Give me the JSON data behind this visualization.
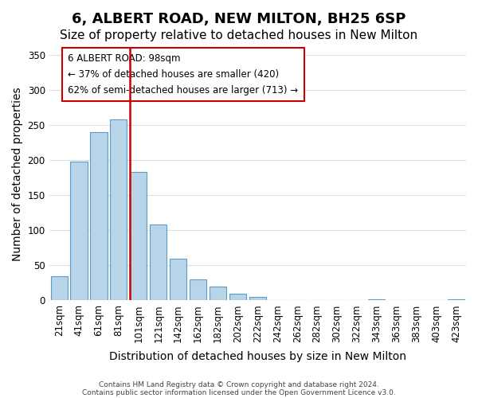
{
  "title": "6, ALBERT ROAD, NEW MILTON, BH25 6SP",
  "subtitle": "Size of property relative to detached houses in New Milton",
  "xlabel": "Distribution of detached houses by size in New Milton",
  "ylabel": "Number of detached properties",
  "bar_labels": [
    "21sqm",
    "41sqm",
    "61sqm",
    "81sqm",
    "101sqm",
    "121sqm",
    "142sqm",
    "162sqm",
    "182sqm",
    "202sqm",
    "222sqm",
    "242sqm",
    "262sqm",
    "282sqm",
    "302sqm",
    "322sqm",
    "343sqm",
    "363sqm",
    "383sqm",
    "403sqm",
    "423sqm"
  ],
  "bar_values": [
    35,
    198,
    240,
    258,
    183,
    108,
    60,
    30,
    20,
    10,
    5,
    0,
    0,
    0,
    0,
    0,
    2,
    0,
    0,
    0,
    2
  ],
  "bar_color": "#b8d4e8",
  "bar_edge_color": "#5a9dc8",
  "vline_x": 3.575,
  "vline_color": "#cc0000",
  "annotation_title": "6 ALBERT ROAD: 98sqm",
  "annotation_line1": "← 37% of detached houses are smaller (420)",
  "annotation_line2": "62% of semi-detached houses are larger (713) →",
  "annotation_box_color": "#ffffff",
  "annotation_box_edge": "#cc0000",
  "ylim": [
    0,
    360
  ],
  "yticks": [
    0,
    50,
    100,
    150,
    200,
    250,
    300,
    350
  ],
  "footer1": "Contains HM Land Registry data © Crown copyright and database right 2024.",
  "footer2": "Contains public sector information licensed under the Open Government Licence v3.0.",
  "bg_color": "#ffffff",
  "grid_color": "#dddddd",
  "title_fontsize": 13,
  "subtitle_fontsize": 11,
  "axis_label_fontsize": 10,
  "tick_fontsize": 8.5
}
